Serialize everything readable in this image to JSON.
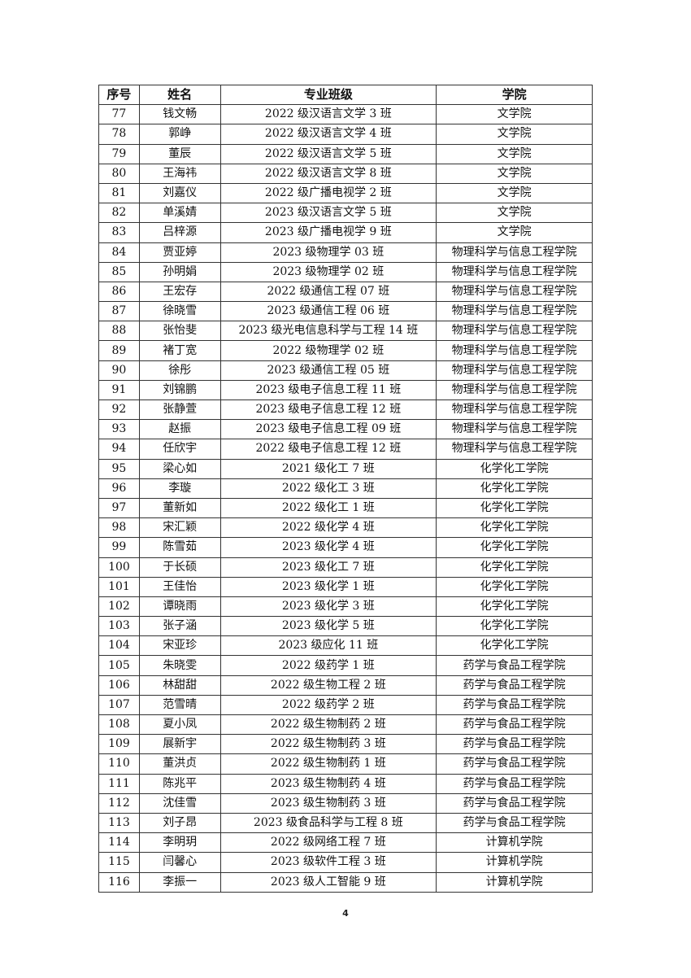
{
  "table": {
    "headers": [
      "序号",
      "姓名",
      "专业班级",
      "学院"
    ],
    "rows": [
      [
        "77",
        "钱文畅",
        "2022 级汉语言文学 3 班",
        "文学院"
      ],
      [
        "78",
        "郭峥",
        "2022 级汉语言文学 4 班",
        "文学院"
      ],
      [
        "79",
        "董辰",
        "2022 级汉语言文学 5 班",
        "文学院"
      ],
      [
        "80",
        "王海祎",
        "2022 级汉语言文学 8 班",
        "文学院"
      ],
      [
        "81",
        "刘嘉仪",
        "2022 级广播电视学 2 班",
        "文学院"
      ],
      [
        "82",
        "单溪婧",
        "2023 级汉语言文学 5 班",
        "文学院"
      ],
      [
        "83",
        "吕梓源",
        "2023 级广播电视学 9 班",
        "文学院"
      ],
      [
        "84",
        "贾亚婷",
        "2023 级物理学 03 班",
        "物理科学与信息工程学院"
      ],
      [
        "85",
        "孙明娟",
        "2023 级物理学 02 班",
        "物理科学与信息工程学院"
      ],
      [
        "86",
        "王宏存",
        "2022 级通信工程 07 班",
        "物理科学与信息工程学院"
      ],
      [
        "87",
        "徐晓雪",
        "2023 级通信工程 06 班",
        "物理科学与信息工程学院"
      ],
      [
        "88",
        "张怡斐",
        "2023 级光电信息科学与工程 14 班",
        "物理科学与信息工程学院"
      ],
      [
        "89",
        "褚丁宽",
        "2022 级物理学 02 班",
        "物理科学与信息工程学院"
      ],
      [
        "90",
        "徐彤",
        "2023 级通信工程 05 班",
        "物理科学与信息工程学院"
      ],
      [
        "91",
        "刘锦鹏",
        "2023 级电子信息工程 11 班",
        "物理科学与信息工程学院"
      ],
      [
        "92",
        "张静萱",
        "2023 级电子信息工程 12 班",
        "物理科学与信息工程学院"
      ],
      [
        "93",
        "赵振",
        "2023 级电子信息工程 09 班",
        "物理科学与信息工程学院"
      ],
      [
        "94",
        "任欣宇",
        "2022 级电子信息工程 12 班",
        "物理科学与信息工程学院"
      ],
      [
        "95",
        "梁心如",
        "2021 级化工 7 班",
        "化学化工学院"
      ],
      [
        "96",
        "李璇",
        "2022 级化工 3 班",
        "化学化工学院"
      ],
      [
        "97",
        "董新如",
        "2022 级化工 1 班",
        "化学化工学院"
      ],
      [
        "98",
        "宋汇颖",
        "2022 级化学 4 班",
        "化学化工学院"
      ],
      [
        "99",
        "陈雪茹",
        "2023 级化学 4 班",
        "化学化工学院"
      ],
      [
        "100",
        "于长硕",
        "2023 级化工 7 班",
        "化学化工学院"
      ],
      [
        "101",
        "王佳怡",
        "2023 级化学 1 班",
        "化学化工学院"
      ],
      [
        "102",
        "谭晓雨",
        "2023 级化学 3 班",
        "化学化工学院"
      ],
      [
        "103",
        "张子涵",
        "2023 级化学 5 班",
        "化学化工学院"
      ],
      [
        "104",
        "宋亚珍",
        "2023 级应化 11 班",
        "化学化工学院"
      ],
      [
        "105",
        "朱晓雯",
        "2022 级药学 1 班",
        "药学与食品工程学院"
      ],
      [
        "106",
        "林甜甜",
        "2022 级生物工程 2 班",
        "药学与食品工程学院"
      ],
      [
        "107",
        "范雪晴",
        "2022 级药学 2 班",
        "药学与食品工程学院"
      ],
      [
        "108",
        "夏小凤",
        "2022 级生物制药 2 班",
        "药学与食品工程学院"
      ],
      [
        "109",
        "展新宇",
        "2022 级生物制药 3 班",
        "药学与食品工程学院"
      ],
      [
        "110",
        "董洪贞",
        "2022 级生物制药 1 班",
        "药学与食品工程学院"
      ],
      [
        "111",
        "陈兆平",
        "2023 级生物制药 4 班",
        "药学与食品工程学院"
      ],
      [
        "112",
        "沈佳雪",
        "2023 级生物制药 3 班",
        "药学与食品工程学院"
      ],
      [
        "113",
        "刘子昂",
        "2023 级食品科学与工程 8 班",
        "药学与食品工程学院"
      ],
      [
        "114",
        "李明玥",
        "2022 级网络工程 7 班",
        "计算机学院"
      ],
      [
        "115",
        "闫馨心",
        "2023 级软件工程 3 班",
        "计算机学院"
      ],
      [
        "116",
        "李振一",
        "2023 级人工智能 9 班",
        "计算机学院"
      ]
    ]
  },
  "page_number": "4"
}
